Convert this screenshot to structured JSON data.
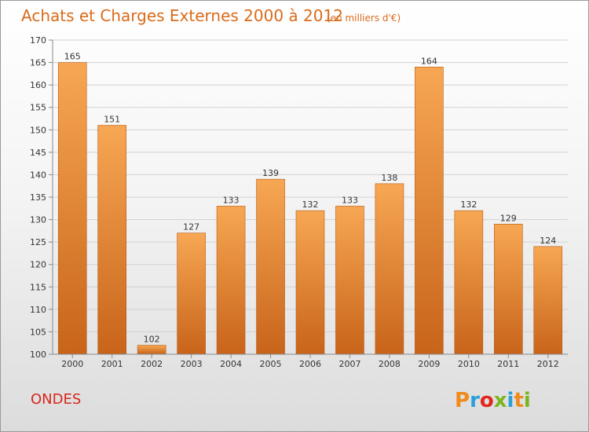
{
  "chart_data": {
    "type": "bar",
    "title": "Achats et Charges Externes 2000 à 2012",
    "subtitle": "(en milliers d'€)",
    "categories": [
      "2000",
      "2001",
      "2002",
      "2003",
      "2004",
      "2005",
      "2006",
      "2007",
      "2008",
      "2009",
      "2010",
      "2011",
      "2012"
    ],
    "values": [
      165,
      151,
      102,
      127,
      133,
      139,
      132,
      133,
      138,
      164,
      132,
      129,
      124
    ],
    "ylim": [
      100,
      170
    ],
    "yticks": [
      100,
      105,
      110,
      115,
      120,
      125,
      130,
      135,
      140,
      145,
      150,
      155,
      160,
      165,
      170
    ],
    "grid": true,
    "bar_color_top": "#f7a753",
    "bar_color_bottom": "#c8641a"
  },
  "footer": {
    "commune": "ONDES",
    "logo_text": "Proxiti",
    "logo_colors": [
      "#f08a1c",
      "#2aa0d8",
      "#e2261b",
      "#7ab51d",
      "#2aa0d8",
      "#f08a1c",
      "#7ab51d"
    ]
  }
}
